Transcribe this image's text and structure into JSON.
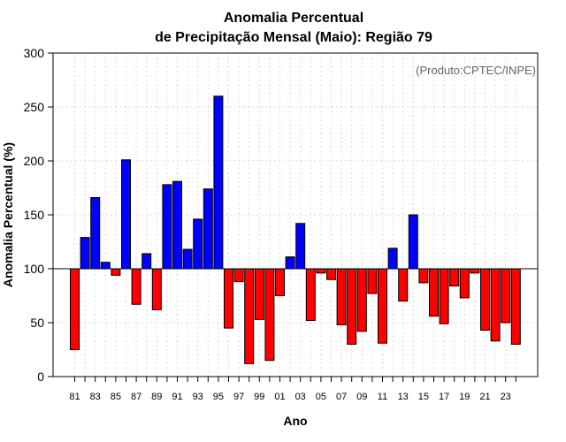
{
  "chart_data": {
    "type": "bar",
    "title_line1": "Anomalia Percentual",
    "title_line2": "de Precipitação Mensal (Maio): Região 79",
    "xlabel": "Ano",
    "ylabel": "Anomalia Percentual (%)",
    "credit": "(Produto:CPTEC/INPE)",
    "ylim": [
      0,
      300
    ],
    "yticks": [
      0,
      50,
      100,
      150,
      200,
      250,
      300
    ],
    "baseline": 100,
    "categories": [
      "81",
      "82",
      "83",
      "84",
      "85",
      "86",
      "87",
      "88",
      "89",
      "90",
      "91",
      "92",
      "93",
      "94",
      "95",
      "96",
      "97",
      "98",
      "99",
      "00",
      "01",
      "02",
      "03",
      "04",
      "05",
      "06",
      "07",
      "08",
      "09",
      "10",
      "11",
      "12",
      "13",
      "14",
      "15",
      "16",
      "17",
      "18",
      "19",
      "20",
      "21",
      "22",
      "23",
      "24"
    ],
    "xtick_labels": [
      "81",
      "83",
      "85",
      "87",
      "89",
      "91",
      "93",
      "95",
      "97",
      "99",
      "01",
      "03",
      "05",
      "07",
      "09",
      "11",
      "13",
      "15",
      "17",
      "19",
      "21",
      "23"
    ],
    "values": [
      25,
      129,
      166,
      106,
      94,
      201,
      67,
      114,
      62,
      178,
      181,
      118,
      146,
      174,
      260,
      45,
      88,
      12,
      53,
      15,
      75,
      111,
      142,
      52,
      96,
      90,
      48,
      30,
      42,
      77,
      31,
      119,
      70,
      150,
      87,
      56,
      49,
      84,
      73,
      96,
      43,
      33,
      50,
      30
    ],
    "colors": {
      "positive": "#0000ff",
      "negative": "#ff0000",
      "grid": "#d9d9d9",
      "baseline": "#000000"
    }
  }
}
